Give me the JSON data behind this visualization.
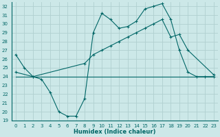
{
  "xlabel": "Humidex (Indice chaleur)",
  "background_color": "#cce8e8",
  "grid_color": "#b0d0d0",
  "line_color": "#006666",
  "xlim": [
    -0.5,
    23.5
  ],
  "ylim": [
    19,
    32.5
  ],
  "yticks": [
    19,
    20,
    21,
    22,
    23,
    24,
    25,
    26,
    27,
    28,
    29,
    30,
    31,
    32
  ],
  "xticks": [
    0,
    1,
    2,
    3,
    4,
    5,
    6,
    7,
    8,
    9,
    10,
    11,
    12,
    13,
    14,
    15,
    16,
    17,
    18,
    19,
    20,
    21,
    22,
    23
  ],
  "line1_x": [
    0,
    1,
    2,
    3,
    4,
    5,
    6,
    7,
    8,
    9,
    10,
    11,
    12,
    13,
    14,
    15,
    16,
    17,
    18,
    19,
    20,
    21,
    22,
    23
  ],
  "line1_y": [
    26.5,
    25.0,
    24.0,
    23.7,
    22.2,
    20.0,
    19.5,
    19.5,
    21.5,
    29.0,
    31.2,
    30.5,
    29.5,
    29.7,
    30.3,
    31.7,
    32.0,
    32.3,
    30.5,
    27.0,
    24.5,
    24.0,
    24.0,
    24.0
  ],
  "line2_x": [
    0,
    2,
    8,
    9,
    10,
    11,
    12,
    13,
    14,
    15,
    16,
    17,
    18,
    19,
    20,
    23
  ],
  "line2_y": [
    24.5,
    24.0,
    25.5,
    26.5,
    27.0,
    27.5,
    28.0,
    28.5,
    29.0,
    29.5,
    30.0,
    30.5,
    28.5,
    28.8,
    27.0,
    24.2
  ],
  "line3_x": [
    0,
    2,
    9,
    19,
    23
  ],
  "line3_y": [
    24.0,
    24.0,
    24.0,
    24.0,
    24.0
  ]
}
